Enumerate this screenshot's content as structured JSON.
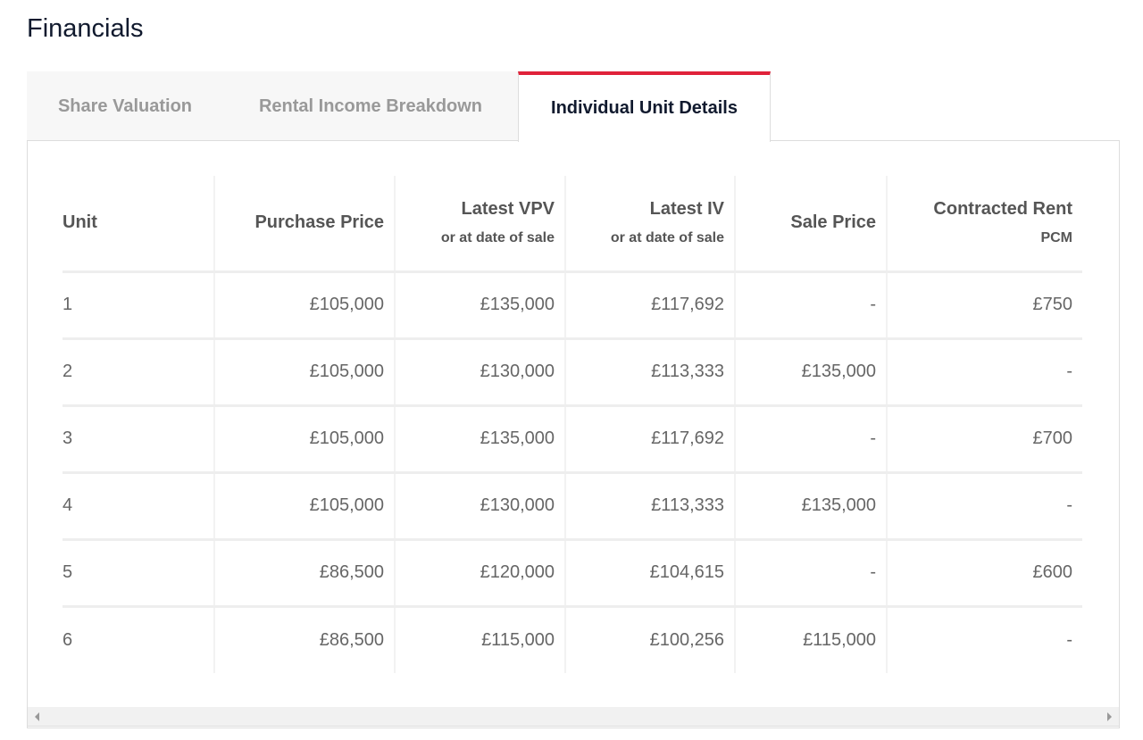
{
  "title": "Financials",
  "tabs": [
    {
      "label": "Share Valuation"
    },
    {
      "label": "Rental Income Breakdown"
    },
    {
      "label": "Individual Unit Details",
      "active": true
    }
  ],
  "accent": "#e0223a",
  "table": {
    "headers": [
      {
        "label": "Unit",
        "sub": ""
      },
      {
        "label": "Purchase Price",
        "sub": ""
      },
      {
        "label": "Latest VPV",
        "sub": "or at date of sale"
      },
      {
        "label": "Latest IV",
        "sub": "or at date of sale"
      },
      {
        "label": "Sale Price",
        "sub": ""
      },
      {
        "label": "Contracted Rent",
        "sub": "PCM"
      }
    ],
    "rows": [
      [
        "1",
        "£105,000",
        "£135,000",
        "£117,692",
        "-",
        "£750"
      ],
      [
        "2",
        "£105,000",
        "£130,000",
        "£113,333",
        "£135,000",
        "-"
      ],
      [
        "3",
        "£105,000",
        "£135,000",
        "£117,692",
        "-",
        "£700"
      ],
      [
        "4",
        "£105,000",
        "£130,000",
        "£113,333",
        "£135,000",
        "-"
      ],
      [
        "5",
        "£86,500",
        "£120,000",
        "£104,615",
        "-",
        "£600"
      ],
      [
        "6",
        "£86,500",
        "£115,000",
        "£100,256",
        "£115,000",
        "-"
      ]
    ]
  }
}
